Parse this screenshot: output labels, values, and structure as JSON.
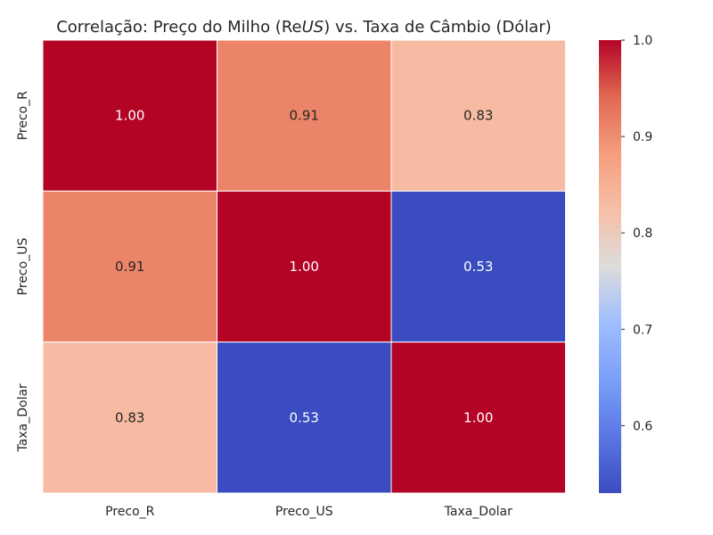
{
  "chart_data": {
    "type": "heatmap",
    "title_parts": [
      {
        "text": "Correlação: Preço do Milho (R",
        "italic": false
      },
      {
        "text": "e",
        "italic": false
      },
      {
        "text": "US",
        "italic": true
      },
      {
        "text": ") vs. Taxa de Câmbio (Dólar)",
        "italic": false
      }
    ],
    "x_categories": [
      "Preco_R",
      "Preco_US",
      "Taxa_Dolar"
    ],
    "y_categories": [
      "Preco_R",
      "Preco_US",
      "Taxa_Dolar"
    ],
    "values": [
      [
        1.0,
        0.91,
        0.83
      ],
      [
        0.91,
        1.0,
        0.53
      ],
      [
        0.83,
        0.53,
        1.0
      ]
    ],
    "cell_labels": [
      [
        "1.00",
        "0.91",
        "0.83"
      ],
      [
        "0.91",
        "1.00",
        "0.53"
      ],
      [
        "0.83",
        "0.53",
        "1.00"
      ]
    ],
    "colorbar": {
      "colormap": "coolwarm",
      "vmin": 0.53,
      "vmax": 1.0,
      "ticks": [
        0.6,
        0.7,
        0.8,
        0.9,
        1.0
      ],
      "tick_labels": [
        "0.6",
        "0.7",
        "0.8",
        "0.9",
        "1.0"
      ]
    },
    "grid": false,
    "legend": "colorbar-right"
  }
}
